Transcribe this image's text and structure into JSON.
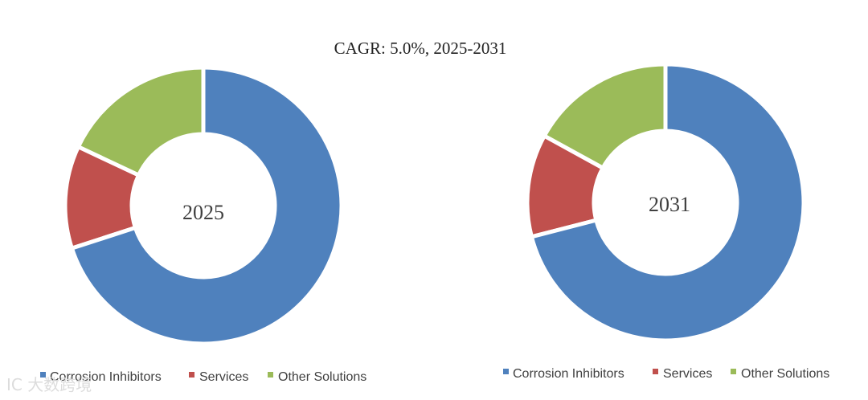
{
  "watermark": "IC 大数跨境",
  "chart_data": {
    "title": "CAGR:   5.0%, 2025-2031",
    "type": "donut",
    "categories": [
      "Corrosion Inhibitors",
      "Services",
      "Other Solutions"
    ],
    "colors": [
      "#4F81BD",
      "#C0504D",
      "#9BBB59"
    ],
    "charts": [
      {
        "label": "2025",
        "values": [
          70,
          12,
          18
        ]
      },
      {
        "label": "2031",
        "values": [
          71,
          12,
          17
        ]
      }
    ]
  }
}
